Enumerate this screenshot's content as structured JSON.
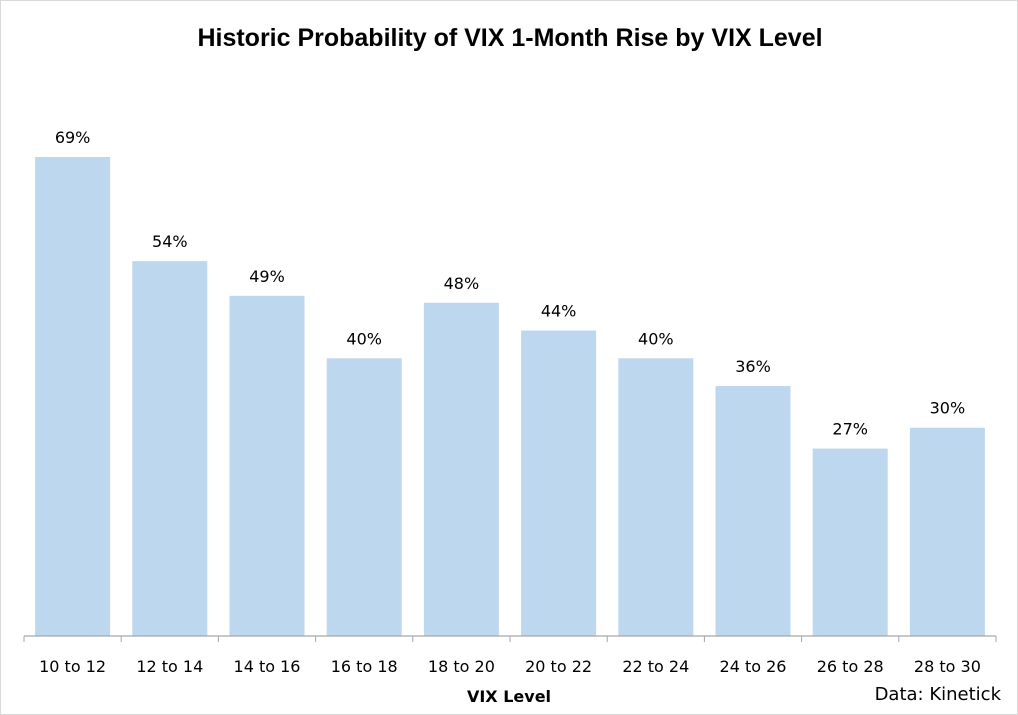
{
  "chart_data": {
    "type": "bar",
    "title": "Historic Probability of VIX 1-Month Rise by VIX Level",
    "xlabel": "VIX Level",
    "ylabel": "",
    "categories": [
      "10 to 12",
      "12 to 14",
      "14 to 16",
      "16 to 18",
      "18 to 20",
      "20 to 22",
      "22 to 24",
      "24 to 26",
      "26 to 28",
      "28 to 30"
    ],
    "values": [
      69,
      54,
      49,
      40,
      48,
      44,
      40,
      36,
      27,
      30
    ],
    "value_labels": [
      "69%",
      "54%",
      "49%",
      "40%",
      "48%",
      "44%",
      "40%",
      "36%",
      "27%",
      "30%"
    ],
    "unit": "%",
    "ylim": [
      0,
      80
    ],
    "grid": false,
    "legend": "none",
    "bar_color": "#bdd7ee",
    "axis_color": "#a6a6a6",
    "source": "Data: Kinetick"
  }
}
